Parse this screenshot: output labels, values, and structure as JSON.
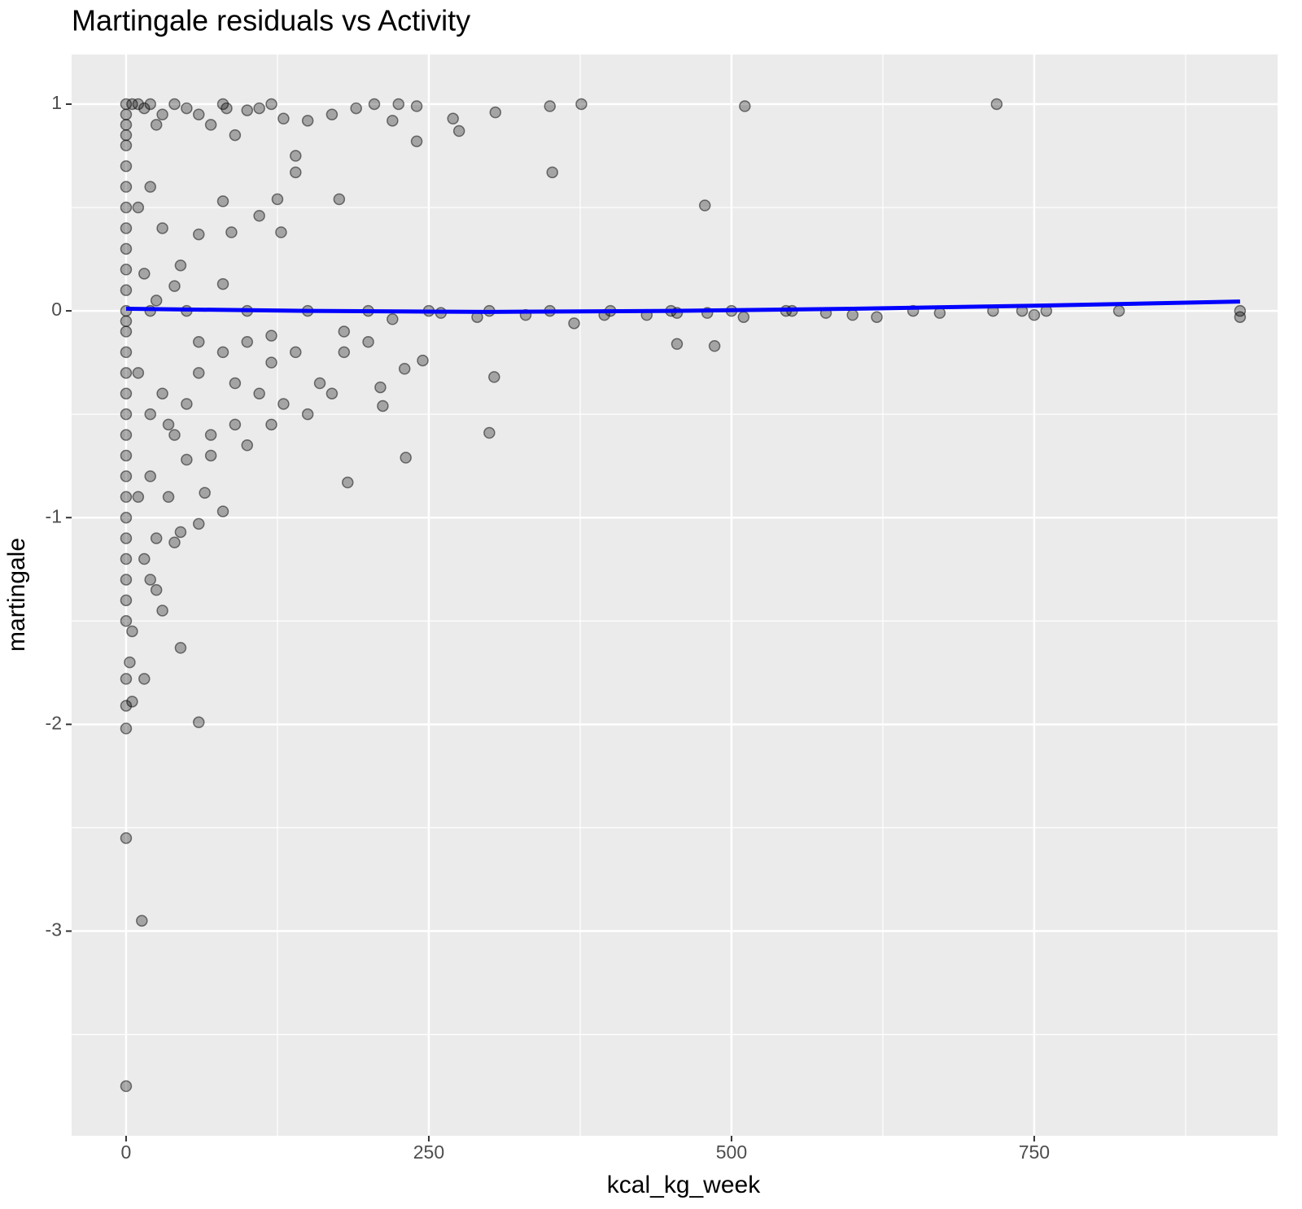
{
  "chart_data": {
    "type": "scatter",
    "title": "Martingale residuals vs Activity",
    "x_label": "kcal_kg_week",
    "y_label": "martingale",
    "xlim": [
      -45,
      951
    ],
    "ylim": [
      -3.99,
      1.24
    ],
    "xticks": [
      0,
      250,
      500,
      750
    ],
    "yticks": [
      1,
      0,
      -1,
      -2,
      -3
    ],
    "x_minor_breaks": [
      125,
      375,
      625,
      875
    ],
    "y_minor_breaks": [
      0.5,
      -0.5,
      -1.5,
      -2.5,
      -3.5
    ],
    "grid": true,
    "point_color": "#000000",
    "point_opacity": 0.3,
    "x": [
      0,
      0,
      0,
      0,
      0,
      0,
      0,
      0,
      0,
      0,
      0,
      0,
      0,
      0,
      0,
      0,
      0,
      0,
      0,
      0,
      0,
      0,
      0,
      0,
      0,
      0,
      0,
      0,
      0,
      0,
      0,
      0,
      0,
      0,
      5,
      10,
      15,
      20,
      25,
      30,
      40,
      50,
      60,
      70,
      80,
      83,
      90,
      100,
      110,
      120,
      130,
      140,
      150,
      170,
      190,
      205,
      220,
      225,
      240,
      240,
      270,
      275,
      305,
      350,
      352,
      376,
      478,
      511,
      719,
      10,
      20,
      30,
      45,
      60,
      80,
      87,
      110,
      125,
      128,
      140,
      176,
      80,
      40,
      15,
      25,
      20,
      50,
      100,
      150,
      200,
      250,
      300,
      350,
      400,
      450,
      500,
      550,
      600,
      650,
      672,
      716,
      740,
      750,
      760,
      820,
      920,
      920,
      620,
      578,
      545,
      510,
      480,
      455,
      430,
      395,
      370,
      330,
      290,
      260,
      220,
      10,
      20,
      30,
      40,
      50,
      60,
      70,
      80,
      90,
      100,
      120,
      140,
      160,
      180,
      200,
      230,
      245,
      10,
      15,
      20,
      25,
      30,
      35,
      40,
      45,
      60,
      65,
      80,
      100,
      120,
      150,
      183,
      212,
      231,
      300,
      304,
      455,
      486,
      15,
      45,
      60,
      13,
      5,
      20,
      25,
      35,
      50,
      70,
      90,
      110,
      130,
      170,
      210,
      180,
      120,
      60,
      5,
      3
    ],
    "y": [
      1,
      0.95,
      0.9,
      0.85,
      0.8,
      0.7,
      0.6,
      0.5,
      0.4,
      0.3,
      0.2,
      0.1,
      0,
      -0.05,
      -0.1,
      -0.2,
      -0.3,
      -0.4,
      -0.5,
      -0.6,
      -0.7,
      -0.8,
      -0.9,
      -1.0,
      -1.1,
      -1.2,
      -1.3,
      -1.4,
      -1.5,
      -1.78,
      -1.91,
      -2.02,
      -2.55,
      -3.75,
      1,
      1,
      0.98,
      1,
      0.9,
      0.95,
      1,
      0.98,
      0.95,
      0.9,
      1,
      0.98,
      0.85,
      0.97,
      0.98,
      1,
      0.93,
      0.75,
      0.92,
      0.95,
      0.98,
      1,
      0.92,
      1,
      0.99,
      0.82,
      0.93,
      0.87,
      0.96,
      0.99,
      0.67,
      1,
      0.51,
      0.99,
      1,
      0.5,
      0.6,
      0.4,
      0.22,
      0.37,
      0.53,
      0.38,
      0.46,
      0.54,
      0.38,
      0.67,
      0.54,
      0.13,
      0.12,
      0.18,
      0.05,
      0,
      0,
      0,
      0,
      0,
      0,
      0,
      0,
      0,
      0,
      0,
      0,
      -0.02,
      0,
      -0.01,
      0,
      0,
      -0.02,
      0,
      0,
      0,
      -0.03,
      -0.03,
      -0.01,
      0,
      -0.03,
      -0.01,
      -0.01,
      -0.02,
      -0.02,
      -0.06,
      -0.02,
      -0.03,
      -0.01,
      -0.04,
      -0.3,
      -0.5,
      -0.4,
      -0.6,
      -0.45,
      -0.3,
      -0.7,
      -0.2,
      -0.35,
      -0.15,
      -0.25,
      -0.2,
      -0.35,
      -0.1,
      -0.15,
      -0.28,
      -0.24,
      -0.9,
      -1.2,
      -0.8,
      -1.1,
      -1.45,
      -0.9,
      -1.12,
      -1.07,
      -1.03,
      -0.88,
      -0.97,
      -0.65,
      -0.55,
      -0.5,
      -0.83,
      -0.46,
      -0.71,
      -0.59,
      -0.32,
      -0.16,
      -0.17,
      -1.78,
      -1.63,
      -1.99,
      -2.95,
      -1.89,
      -1.3,
      -1.35,
      -0.55,
      -0.72,
      -0.6,
      -0.55,
      -0.4,
      -0.45,
      -0.4,
      -0.37,
      -0.2,
      -0.12,
      -0.15,
      -1.55,
      -1.7
    ],
    "trend": {
      "color": "#0000ff",
      "x": [
        0,
        150,
        300,
        450,
        600,
        750,
        920
      ],
      "y": [
        0.01,
        0.0,
        -0.005,
        0.0,
        0.01,
        0.025,
        0.045
      ]
    }
  }
}
